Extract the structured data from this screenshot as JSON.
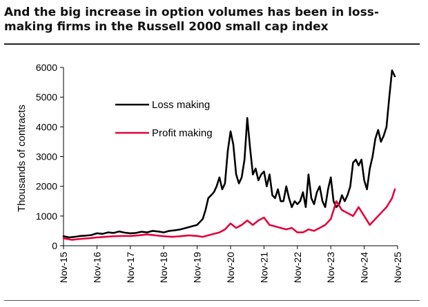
{
  "page": {
    "title": "And the big increase in option volumes has been in loss-making firms in the Russell 2000 small cap index"
  },
  "chart_data": {
    "type": "line",
    "title": "",
    "xlabel": "",
    "ylabel": "Thousands of contracts",
    "ylim": [
      0,
      6000
    ],
    "yticks": [
      0,
      1000,
      2000,
      3000,
      4000,
      5000,
      6000
    ],
    "xlim": [
      "2015-11",
      "2025-11"
    ],
    "xticks": [
      "Nov-15",
      "Nov-16",
      "Nov-17",
      "Nov-18",
      "Nov-19",
      "Nov-20",
      "Nov-21",
      "Nov-22",
      "Nov-23",
      "Nov-24",
      "Nov-25"
    ],
    "legend_position": "upper-left",
    "grid": false,
    "series": [
      {
        "name": "Loss making",
        "color": "#000000",
        "points": [
          [
            "2015-11-01",
            320
          ],
          [
            "2016-01-01",
            280
          ],
          [
            "2016-03-01",
            300
          ],
          [
            "2016-05-01",
            330
          ],
          [
            "2016-07-01",
            340
          ],
          [
            "2016-09-01",
            360
          ],
          [
            "2016-11-01",
            420
          ],
          [
            "2017-01-01",
            400
          ],
          [
            "2017-03-01",
            450
          ],
          [
            "2017-05-01",
            430
          ],
          [
            "2017-07-01",
            480
          ],
          [
            "2017-09-01",
            440
          ],
          [
            "2017-11-01",
            420
          ],
          [
            "2018-01-01",
            430
          ],
          [
            "2018-03-01",
            470
          ],
          [
            "2018-05-01",
            450
          ],
          [
            "2018-07-01",
            500
          ],
          [
            "2018-09-01",
            480
          ],
          [
            "2018-11-01",
            450
          ],
          [
            "2019-01-01",
            500
          ],
          [
            "2019-03-01",
            520
          ],
          [
            "2019-05-01",
            550
          ],
          [
            "2019-07-01",
            600
          ],
          [
            "2019-09-01",
            650
          ],
          [
            "2019-11-01",
            700
          ],
          [
            "2020-01-01",
            900
          ],
          [
            "2020-02-01",
            1200
          ],
          [
            "2020-03-01",
            1600
          ],
          [
            "2020-04-01",
            1700
          ],
          [
            "2020-05-01",
            1800
          ],
          [
            "2020-06-01",
            2000
          ],
          [
            "2020-07-01",
            2300
          ],
          [
            "2020-08-01",
            1900
          ],
          [
            "2020-09-01",
            2100
          ],
          [
            "2020-10-01",
            3200
          ],
          [
            "2020-11-01",
            3850
          ],
          [
            "2020-12-01",
            3400
          ],
          [
            "2021-01-01",
            2400
          ],
          [
            "2021-02-01",
            2100
          ],
          [
            "2021-03-01",
            2300
          ],
          [
            "2021-04-01",
            2900
          ],
          [
            "2021-05-01",
            4300
          ],
          [
            "2021-06-01",
            3300
          ],
          [
            "2021-07-01",
            2400
          ],
          [
            "2021-08-01",
            2600
          ],
          [
            "2021-09-01",
            2200
          ],
          [
            "2021-10-01",
            2400
          ],
          [
            "2021-11-01",
            2500
          ],
          [
            "2021-12-01",
            2000
          ],
          [
            "2022-01-01",
            2400
          ],
          [
            "2022-02-01",
            1700
          ],
          [
            "2022-03-01",
            1600
          ],
          [
            "2022-04-01",
            1900
          ],
          [
            "2022-05-01",
            1500
          ],
          [
            "2022-06-01",
            1500
          ],
          [
            "2022-07-01",
            2000
          ],
          [
            "2022-08-01",
            1600
          ],
          [
            "2022-09-01",
            1300
          ],
          [
            "2022-10-01",
            1500
          ],
          [
            "2022-11-01",
            1400
          ],
          [
            "2022-12-01",
            1500
          ],
          [
            "2023-01-01",
            1800
          ],
          [
            "2023-02-01",
            1300
          ],
          [
            "2023-03-01",
            2400
          ],
          [
            "2023-04-01",
            1600
          ],
          [
            "2023-05-01",
            1400
          ],
          [
            "2023-06-01",
            1800
          ],
          [
            "2023-07-01",
            2000
          ],
          [
            "2023-08-01",
            1500
          ],
          [
            "2023-09-01",
            1300
          ],
          [
            "2023-10-01",
            1900
          ],
          [
            "2023-11-01",
            2300
          ],
          [
            "2023-12-01",
            1500
          ],
          [
            "2024-01-01",
            1300
          ],
          [
            "2024-02-01",
            1400
          ],
          [
            "2024-03-01",
            1700
          ],
          [
            "2024-04-01",
            1500
          ],
          [
            "2024-05-01",
            1700
          ],
          [
            "2024-06-01",
            2000
          ],
          [
            "2024-07-01",
            2800
          ],
          [
            "2024-08-01",
            2900
          ],
          [
            "2024-09-01",
            2700
          ],
          [
            "2024-10-01",
            2900
          ],
          [
            "2024-11-01",
            2200
          ],
          [
            "2024-12-01",
            1900
          ],
          [
            "2025-01-01",
            2600
          ],
          [
            "2025-02-01",
            3000
          ],
          [
            "2025-03-01",
            3600
          ],
          [
            "2025-04-01",
            3900
          ],
          [
            "2025-05-01",
            3500
          ],
          [
            "2025-06-01",
            3700
          ],
          [
            "2025-07-01",
            4000
          ],
          [
            "2025-08-01",
            5000
          ],
          [
            "2025-09-01",
            5900
          ],
          [
            "2025-10-01",
            5700
          ]
        ]
      },
      {
        "name": "Profit making",
        "color": "#e4003a",
        "points": [
          [
            "2015-11-01",
            250
          ],
          [
            "2016-02-01",
            200
          ],
          [
            "2016-05-01",
            230
          ],
          [
            "2016-08-01",
            250
          ],
          [
            "2016-11-01",
            280
          ],
          [
            "2017-02-01",
            300
          ],
          [
            "2017-05-01",
            320
          ],
          [
            "2017-08-01",
            330
          ],
          [
            "2017-11-01",
            330
          ],
          [
            "2018-02-01",
            350
          ],
          [
            "2018-05-01",
            380
          ],
          [
            "2018-08-01",
            350
          ],
          [
            "2018-11-01",
            320
          ],
          [
            "2019-02-01",
            300
          ],
          [
            "2019-05-01",
            320
          ],
          [
            "2019-08-01",
            350
          ],
          [
            "2019-11-01",
            330
          ],
          [
            "2020-01-01",
            300
          ],
          [
            "2020-03-01",
            350
          ],
          [
            "2020-05-01",
            400
          ],
          [
            "2020-07-01",
            450
          ],
          [
            "2020-09-01",
            550
          ],
          [
            "2020-11-01",
            750
          ],
          [
            "2021-01-01",
            600
          ],
          [
            "2021-03-01",
            700
          ],
          [
            "2021-05-01",
            850
          ],
          [
            "2021-07-01",
            700
          ],
          [
            "2021-09-01",
            850
          ],
          [
            "2021-11-01",
            950
          ],
          [
            "2022-01-01",
            700
          ],
          [
            "2022-03-01",
            650
          ],
          [
            "2022-05-01",
            600
          ],
          [
            "2022-07-01",
            550
          ],
          [
            "2022-09-01",
            600
          ],
          [
            "2022-11-01",
            450
          ],
          [
            "2023-01-01",
            450
          ],
          [
            "2023-03-01",
            550
          ],
          [
            "2023-05-01",
            500
          ],
          [
            "2023-07-01",
            600
          ],
          [
            "2023-09-01",
            700
          ],
          [
            "2023-11-01",
            900
          ],
          [
            "2024-01-01",
            1500
          ],
          [
            "2024-03-01",
            1200
          ],
          [
            "2024-05-01",
            1100
          ],
          [
            "2024-07-01",
            1000
          ],
          [
            "2024-09-01",
            1300
          ],
          [
            "2024-11-01",
            1000
          ],
          [
            "2025-01-01",
            700
          ],
          [
            "2025-03-01",
            900
          ],
          [
            "2025-05-01",
            1100
          ],
          [
            "2025-07-01",
            1300
          ],
          [
            "2025-09-01",
            1600
          ],
          [
            "2025-10-01",
            1900
          ]
        ]
      }
    ]
  }
}
